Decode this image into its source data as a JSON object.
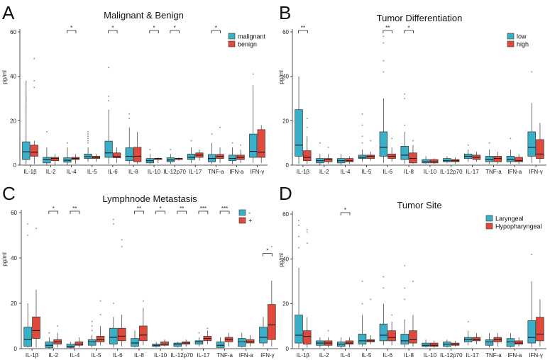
{
  "colors": {
    "series_a": "#3ab0c8",
    "series_b": "#e0493c",
    "outline": "#333333",
    "outlier": "#9a9a9a"
  },
  "chart_data": [
    {
      "panel": "A",
      "type": "boxplot",
      "title": "Malignant & Benign",
      "ylabel": "pg/ml",
      "ylim": [
        0,
        60
      ],
      "yticks": [
        0,
        20,
        40,
        60
      ],
      "categories": [
        "IL-1β",
        "IL-2",
        "IL-4",
        "IL-5",
        "IL-6",
        "IL-8",
        "IL-10",
        "IL-12p70",
        "IL-17",
        "TNF-a",
        "IFN-a",
        "IFN-γ"
      ],
      "legend": [
        "malignant",
        "benign"
      ],
      "significance": [
        {
          "category": "IL-4",
          "label": "*"
        },
        {
          "category": "IL-6",
          "label": "*"
        },
        {
          "category": "IL-10",
          "label": "*"
        },
        {
          "category": "IL-12p70",
          "label": "*"
        },
        {
          "category": "TNF-a",
          "label": "*"
        }
      ],
      "series": [
        {
          "name": "malignant",
          "boxes": [
            [
              0.3,
              2.5,
              6,
              10.5,
              38,
              [
                26,
                29,
                31
              ]
            ],
            [
              0,
              1,
              2.5,
              3.5,
              8,
              [
                15
              ]
            ],
            [
              0,
              1.3,
              2.2,
              3.3,
              8,
              [
                10
              ]
            ],
            [
              1.5,
              3,
              3.8,
              5,
              8,
              [
                10,
                11,
                12,
                13,
                14,
                15
              ]
            ],
            [
              0.5,
              3.5,
              5.5,
              10.8,
              25,
              [
                29,
                31,
                44
              ]
            ],
            [
              0.5,
              2,
              4,
              7.8,
              17,
              [
                21,
                23
              ]
            ],
            [
              0.5,
              1,
              2,
              3,
              5,
              [
                7
              ]
            ],
            [
              0.5,
              1.5,
              2.3,
              3.3,
              5,
              [
                7
              ]
            ],
            [
              1,
              2.5,
              3.5,
              5,
              8,
              [
                11
              ]
            ],
            [
              0.5,
              1.5,
              3,
              4.8,
              10,
              [
                14
              ]
            ],
            [
              0.5,
              2,
              3,
              4.5,
              8,
              [
                10
              ]
            ],
            [
              1,
              3.5,
              6.2,
              14,
              36,
              [
                41
              ]
            ]
          ]
        },
        {
          "name": "benign",
          "boxes": [
            [
              0.5,
              4,
              5.8,
              9,
              11,
              [
                48,
                38,
                35
              ]
            ],
            [
              0,
              2,
              3,
              3.5,
              5,
              []
            ],
            [
              0.5,
              2.5,
              3,
              3.5,
              5,
              []
            ],
            [
              1.5,
              3,
              3.5,
              4,
              5,
              []
            ],
            [
              1,
              3.3,
              4,
              5.5,
              8,
              []
            ],
            [
              0.5,
              1.5,
              4,
              8,
              15,
              []
            ],
            [
              1,
              2.5,
              3,
              3,
              3.5,
              []
            ],
            [
              2,
              2.5,
              3,
              3,
              3.5,
              []
            ],
            [
              2,
              3.5,
              4.5,
              5.5,
              7,
              []
            ],
            [
              1,
              3,
              4,
              4.8,
              8,
              [
                17
              ]
            ],
            [
              1,
              2.5,
              3.5,
              4.5,
              7,
              [
                9
              ]
            ],
            [
              1,
              3.5,
              5.8,
              16,
              18,
              []
            ]
          ]
        }
      ]
    },
    {
      "panel": "B",
      "type": "boxplot",
      "title": "Tumor Differentiation",
      "ylabel": "pg/ml",
      "ylim": [
        0,
        60
      ],
      "yticks": [
        0,
        20,
        40,
        60
      ],
      "categories": [
        "IL-1β",
        "IL-2",
        "IL-4",
        "IL-5",
        "IL-6",
        "IL-8",
        "IL-10",
        "IL-12p70",
        "IL-17",
        "TNF-a",
        "IFN-a",
        "IFN-γ"
      ],
      "legend": [
        "low",
        "high"
      ],
      "significance": [
        {
          "category": "IL-1β",
          "label": "**"
        },
        {
          "category": "IL-6",
          "label": "**"
        },
        {
          "category": "IL-8",
          "label": "*"
        }
      ],
      "series": [
        {
          "name": "low",
          "boxes": [
            [
              0.5,
              4,
              9,
              25,
              40,
              []
            ],
            [
              0,
              1,
              2,
              3,
              5,
              [
                10
              ]
            ],
            [
              0,
              1,
              2,
              3,
              5,
              []
            ],
            [
              1.5,
              3,
              3.5,
              4.5,
              7,
              [
                10,
                13,
                18,
                23
              ]
            ],
            [
              1,
              4,
              8,
              15,
              30,
              [
                42,
                47,
                55,
                58
              ]
            ],
            [
              0.5,
              2.5,
              4.5,
              8.5,
              15,
              [
                18,
                30,
                32
              ]
            ],
            [
              0.5,
              1,
              1.5,
              2.5,
              4,
              []
            ],
            [
              1,
              1.5,
              2,
              3,
              4,
              []
            ],
            [
              1.5,
              3,
              4,
              5,
              7,
              [
                9
              ]
            ],
            [
              0.5,
              1.5,
              2.5,
              4,
              7,
              [
                10
              ]
            ],
            [
              0.5,
              1.5,
              2.5,
              4,
              7,
              [
                12
              ]
            ],
            [
              1,
              4,
              8,
              15,
              28,
              [
                42
              ]
            ]
          ]
        },
        {
          "name": "high",
          "boxes": [
            [
              0.5,
              2,
              3.5,
              6.5,
              13,
              [
                17,
                21
              ]
            ],
            [
              0.5,
              1.5,
              2.5,
              3,
              5,
              [
                8
              ]
            ],
            [
              0.5,
              1.5,
              2,
              3,
              4,
              []
            ],
            [
              2,
              3,
              4,
              4.5,
              6,
              [
                11
              ]
            ],
            [
              1.5,
              3,
              4,
              5,
              8,
              [
                12
              ]
            ],
            [
              0.5,
              1,
              3,
              5.5,
              9,
              [
                11
              ]
            ],
            [
              0.5,
              1,
              1.5,
              2.5,
              3,
              []
            ],
            [
              0.5,
              1.5,
              2,
              2.5,
              3.5,
              []
            ],
            [
              1.5,
              2.5,
              3.5,
              4.5,
              6,
              []
            ],
            [
              0.5,
              1.5,
              3,
              4,
              6,
              []
            ],
            [
              0.5,
              1.5,
              2,
              3.5,
              5,
              []
            ],
            [
              1,
              3,
              5,
              11.5,
              19,
              []
            ]
          ]
        }
      ]
    },
    {
      "panel": "C",
      "type": "boxplot",
      "title": "Lymphnode Metastasis",
      "ylabel": "pg/ml",
      "ylim": [
        0,
        60
      ],
      "yticks": [
        0,
        20,
        40,
        60
      ],
      "categories": [
        "IL-1β",
        "IL-2",
        "IL-4",
        "IL-5",
        "IL-6",
        "IL-8",
        "IL-10",
        "IL-12p70",
        "IL-17",
        "TNF-a",
        "IFN-a",
        "IFN-γ"
      ],
      "legend": [
        "-",
        "+"
      ],
      "significance": [
        {
          "category": "IL-2",
          "label": "*"
        },
        {
          "category": "IL-4",
          "label": "**"
        },
        {
          "category": "IL-8",
          "label": "**"
        },
        {
          "category": "IL-10",
          "label": "*"
        },
        {
          "category": "IL-12p70",
          "label": "**"
        },
        {
          "category": "IL-17",
          "label": "***"
        },
        {
          "category": "TNF-a",
          "label": "***"
        },
        {
          "category": "IFN-γ",
          "label": "*"
        }
      ],
      "series": [
        {
          "name": "-",
          "boxes": [
            [
              0.5,
              1,
              4,
              9.5,
              20,
              [
                50,
                55
              ]
            ],
            [
              0,
              0.5,
              1.5,
              3,
              5,
              [
                7
              ]
            ],
            [
              0,
              0.5,
              1,
              2,
              3,
              []
            ],
            [
              0.5,
              1.5,
              3,
              4,
              6,
              [
                8,
                10,
                12
              ]
            ],
            [
              0.5,
              2,
              5,
              9,
              14,
              [
                20,
                55,
                57
              ]
            ],
            [
              0.5,
              1,
              2.5,
              4.5,
              8,
              []
            ],
            [
              0.5,
              1,
              1.5,
              2,
              3,
              []
            ],
            [
              0.5,
              1,
              2,
              2.5,
              3,
              []
            ],
            [
              1,
              2,
              3,
              3.5,
              5,
              [
                7
              ]
            ],
            [
              0.5,
              0.5,
              1.5,
              3,
              5,
              []
            ],
            [
              0.5,
              1,
              3,
              4.5,
              7,
              []
            ],
            [
              1,
              2.5,
              5,
              9.5,
              14,
              []
            ]
          ]
        },
        {
          "name": "+",
          "boxes": [
            [
              0.5,
              4.5,
              8,
              14,
              26,
              [
                53
              ]
            ],
            [
              0.5,
              2,
              3,
              4,
              7,
              [
                10
              ]
            ],
            [
              0.5,
              1.5,
              2,
              3,
              5,
              []
            ],
            [
              1.5,
              3,
              4,
              5.5,
              10,
              [
                15,
                21
              ]
            ],
            [
              1,
              3.5,
              5.5,
              9,
              15,
              [
                45,
                48
              ]
            ],
            [
              1.5,
              3.5,
              6,
              10,
              18,
              [
                21
              ]
            ],
            [
              1,
              1.5,
              2,
              3,
              4,
              []
            ],
            [
              1,
              2,
              2.5,
              3,
              4,
              []
            ],
            [
              2,
              3.5,
              4.5,
              5.5,
              8,
              [
                9
              ]
            ],
            [
              1,
              3,
              4,
              5,
              7,
              []
            ],
            [
              1,
              2.5,
              3,
              4,
              6,
              []
            ],
            [
              1,
              4,
              10.5,
              19.5,
              30,
              [
                45
              ]
            ]
          ]
        }
      ]
    },
    {
      "panel": "D",
      "type": "boxplot",
      "title": "Tumor Site",
      "ylabel": "pg/ml",
      "ylim": [
        0,
        60
      ],
      "yticks": [
        0,
        20,
        40,
        60
      ],
      "categories": [
        "IL-1β",
        "IL-2",
        "IL-4",
        "IL-5",
        "IL-6",
        "IL-8",
        "IL-10",
        "IL-12p70",
        "IL-17",
        "TNF-a",
        "IFN-a",
        "IFN-γ"
      ],
      "legend": [
        "Laryngeal",
        "Hypopharyngeal"
      ],
      "significance": [
        {
          "category": "IL-4",
          "label": "*"
        }
      ],
      "series": [
        {
          "name": "Laryngeal",
          "boxes": [
            [
              0.3,
              2.5,
              6,
              15,
              36,
              [
                45,
                50,
                55,
                57
              ]
            ],
            [
              0.5,
              1.5,
              2.5,
              3.5,
              5,
              []
            ],
            [
              0,
              1,
              2,
              3,
              5,
              []
            ],
            [
              1,
              2,
              3.5,
              6.5,
              15,
              [
                20,
                30
              ]
            ],
            [
              1.5,
              3.5,
              6,
              11,
              20,
              [
                27,
                32
              ]
            ],
            [
              0.5,
              2,
              3.5,
              6.5,
              13,
              [
                22,
                27,
                37
              ]
            ],
            [
              0.5,
              1,
              1.5,
              2.5,
              4,
              []
            ],
            [
              0.5,
              1,
              2,
              3,
              4,
              []
            ],
            [
              1.5,
              3,
              4,
              5,
              8,
              [
                12
              ]
            ],
            [
              0.5,
              1.5,
              3,
              4,
              7,
              []
            ],
            [
              0.5,
              1,
              3,
              4.5,
              7,
              []
            ],
            [
              0.5,
              2.5,
              5,
              12.5,
              30,
              [
                42
              ]
            ]
          ]
        },
        {
          "name": "Hypopharyngeal",
          "boxes": [
            [
              0.5,
              2,
              5.5,
              8,
              14,
              [
                47,
                52,
                53
              ]
            ],
            [
              0.5,
              1.5,
              2.5,
              3.5,
              5,
              [
                8
              ]
            ],
            [
              0.5,
              2,
              2.5,
              3.5,
              5,
              []
            ],
            [
              2,
              3,
              3.5,
              4,
              6,
              [
                22
              ]
            ],
            [
              1.5,
              3.5,
              5,
              8,
              12,
              [
                15
              ]
            ],
            [
              1,
              2.5,
              4,
              8,
              15,
              [
                30
              ]
            ],
            [
              0.5,
              1,
              1.5,
              2.5,
              3.5,
              []
            ],
            [
              1,
              1.5,
              2,
              2.5,
              3.5,
              []
            ],
            [
              2,
              3.5,
              4,
              5,
              7,
              []
            ],
            [
              1,
              3,
              4,
              5,
              7,
              []
            ],
            [
              1,
              2,
              2.5,
              3.5,
              5,
              []
            ],
            [
              1,
              3.5,
              6.5,
              14,
              22,
              []
            ]
          ]
        }
      ]
    }
  ]
}
